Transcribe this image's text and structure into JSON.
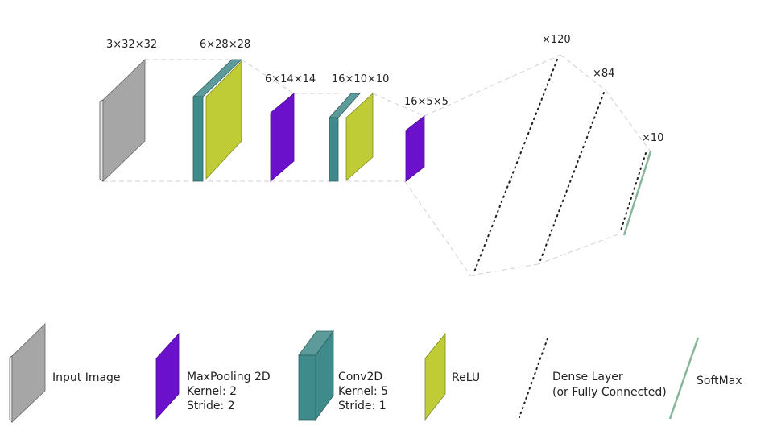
{
  "colors": {
    "input": "#a6a6a6",
    "input_side": "#e6e6e6",
    "conv": "#3f8a8a",
    "conv_top": "#5d9b9b",
    "relu": "#c0cc35",
    "pool": "#6b11cc",
    "softmax": "#86b59b",
    "dense": "#222222"
  },
  "shape_labels": {
    "input": "3×32×32",
    "conv1": "6×28×28",
    "pool1": "6×14×14",
    "conv2": "16×10×10",
    "pool2": "16×5×5",
    "fc1": "×120",
    "fc2": "×84",
    "fc3": "×10"
  },
  "legend": {
    "input": {
      "line1": "Input Image"
    },
    "pool": {
      "line1": "MaxPooling 2D",
      "line2": "Kernel: 2",
      "line3": "Stride: 2"
    },
    "conv": {
      "line1": "Conv2D",
      "line2": "Kernel: 5",
      "line3": "Stride: 1"
    },
    "relu": {
      "line1": "ReLU"
    },
    "dense": {
      "line1": "Dense Layer",
      "line2": "(or Fully Connected)"
    },
    "softmax": {
      "line1": "SoftMax"
    }
  }
}
